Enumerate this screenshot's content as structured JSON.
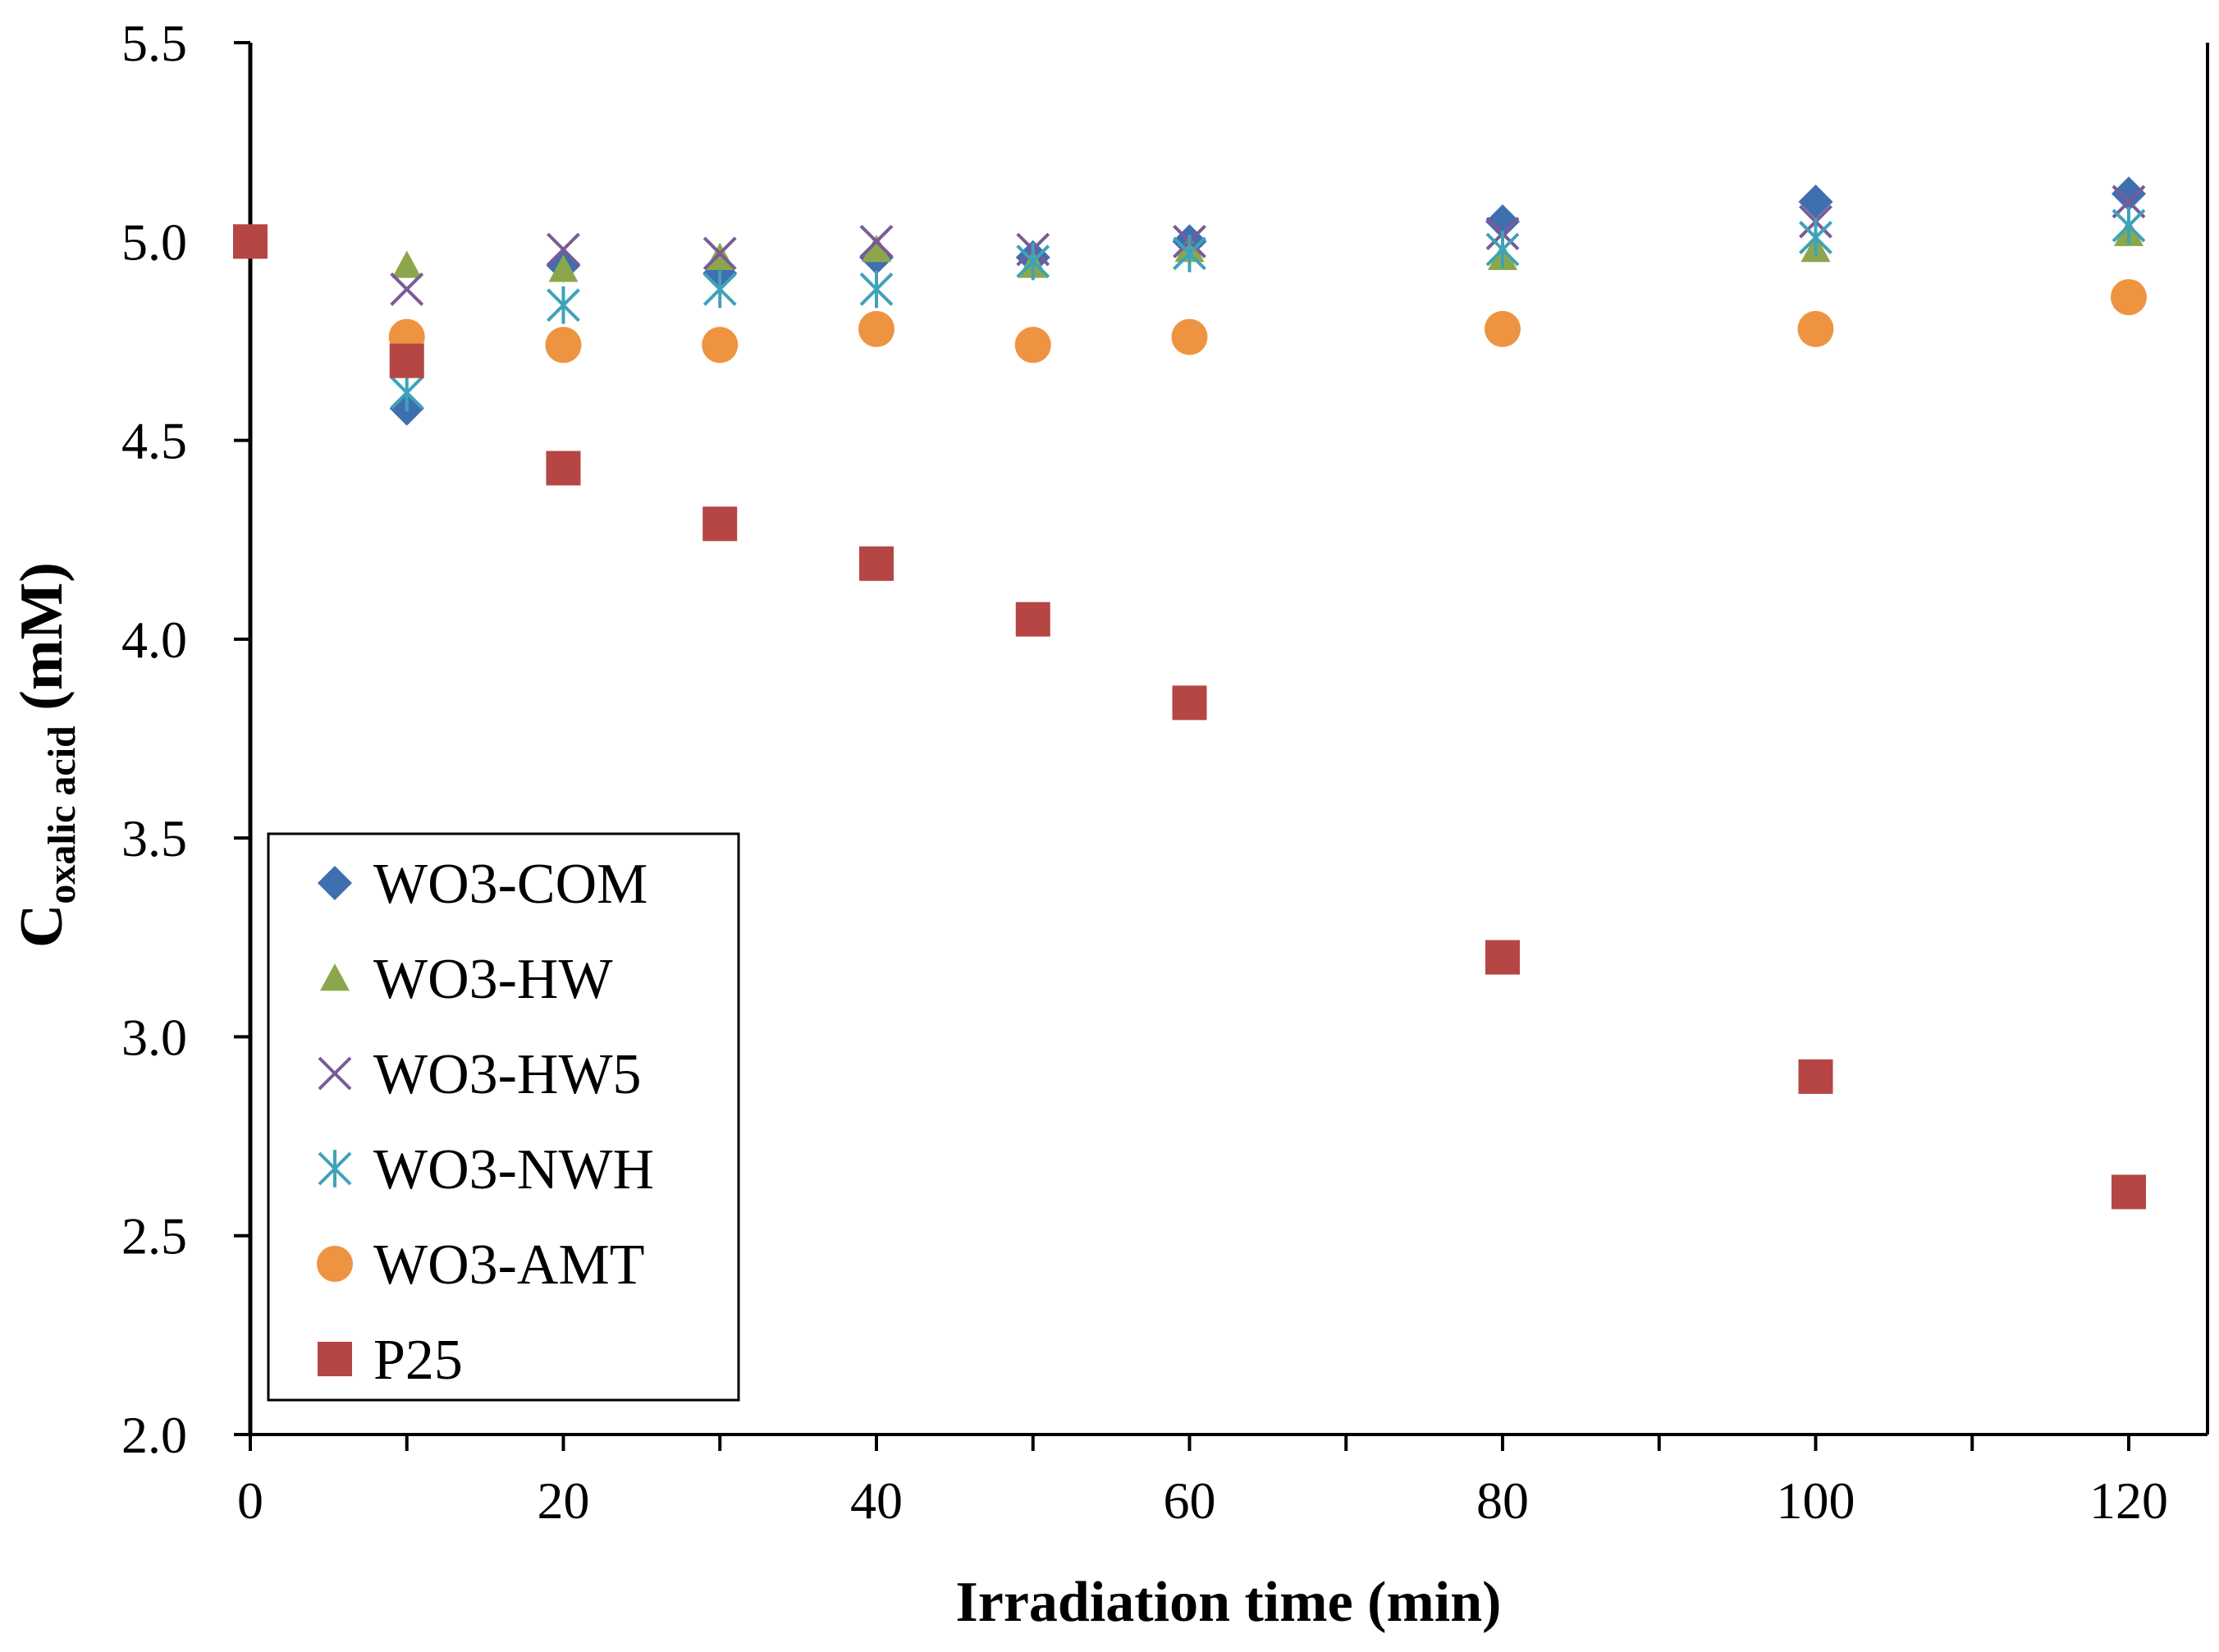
{
  "chart_data": {
    "type": "scatter",
    "title": "",
    "xlabel": "Irradiation  time (min)",
    "ylabel": {
      "main": "C",
      "sub": "oxalic acid",
      "unit": " (mM)"
    },
    "xlim": [
      0,
      125
    ],
    "ylim": [
      2.0,
      5.5
    ],
    "x_ticks": [
      0,
      20,
      40,
      60,
      80,
      100,
      120
    ],
    "x_tick_labels": [
      "0",
      "20",
      "40",
      "60",
      "80",
      "100",
      "120"
    ],
    "x_minor_ticks": [
      10,
      30,
      50,
      70,
      90,
      110
    ],
    "y_ticks": [
      2.0,
      2.5,
      3.0,
      3.5,
      4.0,
      4.5,
      5.0,
      5.5
    ],
    "y_tick_labels": [
      "2.0",
      "2.5",
      "3.0",
      "3.5",
      "4.0",
      "4.5",
      "5.0",
      "5.5"
    ],
    "grid": false,
    "legend_position": "bottom-left",
    "series": [
      {
        "name": "WO3-COM",
        "marker": "diamond",
        "color": "#3F6FAE",
        "points": [
          [
            10,
            4.58
          ],
          [
            20,
            4.94
          ],
          [
            30,
            4.92
          ],
          [
            40,
            4.96
          ],
          [
            50,
            4.96
          ],
          [
            60,
            5.0
          ],
          [
            80,
            5.05
          ],
          [
            100,
            5.1
          ],
          [
            120,
            5.12
          ]
        ]
      },
      {
        "name": "WO3-HW",
        "marker": "triangle",
        "color": "#8CA74B",
        "points": [
          [
            10,
            4.94
          ],
          [
            20,
            4.93
          ],
          [
            30,
            4.96
          ],
          [
            40,
            4.98
          ],
          [
            50,
            4.94
          ],
          [
            60,
            4.98
          ],
          [
            80,
            4.96
          ],
          [
            100,
            4.98
          ],
          [
            120,
            5.02
          ]
        ]
      },
      {
        "name": "WO3-HW5",
        "marker": "x",
        "color": "#7A5A97",
        "points": [
          [
            10,
            4.88
          ],
          [
            20,
            4.98
          ],
          [
            30,
            4.97
          ],
          [
            40,
            5.0
          ],
          [
            50,
            4.98
          ],
          [
            60,
            5.0
          ],
          [
            80,
            5.02
          ],
          [
            100,
            5.05
          ],
          [
            120,
            5.1
          ]
        ]
      },
      {
        "name": "WO3-NWH",
        "marker": "asterisk",
        "color": "#3EA3B8",
        "points": [
          [
            10,
            4.62
          ],
          [
            20,
            4.84
          ],
          [
            30,
            4.88
          ],
          [
            40,
            4.88
          ],
          [
            50,
            4.95
          ],
          [
            60,
            4.97
          ],
          [
            80,
            4.98
          ],
          [
            100,
            5.01
          ],
          [
            120,
            5.04
          ]
        ]
      },
      {
        "name": "WO3-AMT",
        "marker": "circle",
        "color": "#EE9441",
        "points": [
          [
            10,
            4.76
          ],
          [
            20,
            4.74
          ],
          [
            30,
            4.74
          ],
          [
            40,
            4.78
          ],
          [
            50,
            4.74
          ],
          [
            60,
            4.76
          ],
          [
            80,
            4.78
          ],
          [
            100,
            4.78
          ],
          [
            120,
            4.86
          ]
        ]
      },
      {
        "name": "P25",
        "marker": "square",
        "color": "#B54644",
        "points": [
          [
            0,
            5.0
          ],
          [
            10,
            4.7
          ],
          [
            20,
            4.43
          ],
          [
            30,
            4.29
          ],
          [
            40,
            4.19
          ],
          [
            50,
            4.05
          ],
          [
            60,
            3.84
          ],
          [
            80,
            3.2
          ],
          [
            100,
            2.9
          ],
          [
            120,
            2.61
          ]
        ]
      }
    ]
  }
}
